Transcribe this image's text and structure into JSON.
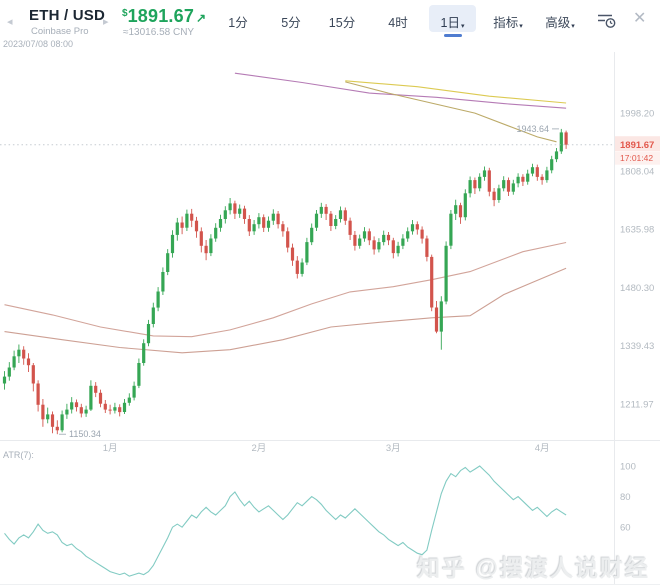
{
  "icons": {
    "prev": "◂",
    "next": "▸",
    "caret": "▾",
    "close": "✕"
  },
  "header": {
    "symbol": "ETH / USD",
    "exchange": "Coinbase Pro",
    "price_currency_symbol": "$",
    "price": "1891.67",
    "trend_arrow": "↗",
    "converted_price": "≈13016.58 CNY",
    "timestamp": "2023/07/08 08:00",
    "timeframe_tabs": [
      {
        "label": "1分",
        "selected": false
      },
      {
        "label": "5分",
        "selected": false
      },
      {
        "label": "15分",
        "selected": false
      },
      {
        "label": "4时",
        "selected": false
      },
      {
        "label": "1日",
        "selected": true
      }
    ],
    "menus": [
      {
        "label": "指标"
      },
      {
        "label": "高级"
      }
    ],
    "accent_colors": {
      "price_up": "#1ea45c",
      "tab_selected_bg": "#e8eef8",
      "tab_underline": "#4f7cd0"
    }
  },
  "chart": {
    "price_axis": [
      "1998.20",
      "1808.04",
      "1635.98",
      "1480.30",
      "1339.43",
      "1211.97"
    ],
    "current_price_label": {
      "price": "1891.67",
      "countdown": "17:01:42",
      "bg": "#fbe7e4",
      "bg2": "#fdf1ef",
      "color": "#e2584c"
    },
    "high_annotation": "1943.64",
    "low_annotation": "1150.34",
    "time_axis": [
      {
        "label": "1月",
        "index": 22
      },
      {
        "label": "2月",
        "index": 53
      },
      {
        "label": "3月",
        "index": 81
      },
      {
        "label": "4月",
        "index": 112
      }
    ],
    "colors": {
      "up": "#35a654",
      "down": "#d2544c",
      "ma_fast_purple": "#b57bb5",
      "ma_mid_yellow": "#dcca52",
      "trendline_olive": "#bcaa68",
      "ma_slow_upper": "#d2a49a",
      "ma_slow_lower": "#cda094",
      "atr": "#82cbc3",
      "dotted_line": "#c5cbd1",
      "axis_text": "#b3bac1",
      "grid": "#e8eaed",
      "annotation_text": "#9aa4af"
    }
  },
  "atr_pane": {
    "label": "ATR(7):",
    "axis": [
      "100",
      "80",
      "60"
    ]
  },
  "watermark": "知乎 @摆渡人说财经",
  "chart_data": [
    {
      "type": "candlestick",
      "title": "ETH/USD 1D candles, Coinbase Pro",
      "price_scale": "log",
      "y_axis_ticks": [
        1998.2,
        1808.04,
        1635.98,
        1480.3,
        1339.43,
        1211.97
      ],
      "x_axis_months": [
        "1月",
        "2月",
        "3月",
        "4月"
      ],
      "period_high": 1943.64,
      "period_low": 1150.34,
      "last_price": 1891.67,
      "ohlc": [
        [
          1255,
          1282,
          1242,
          1270
        ],
        [
          1270,
          1302,
          1261,
          1290
        ],
        [
          1290,
          1328,
          1284,
          1315
        ],
        [
          1315,
          1342,
          1300,
          1330
        ],
        [
          1330,
          1338,
          1296,
          1310
        ],
        [
          1310,
          1322,
          1280,
          1295
        ],
        [
          1295,
          1300,
          1238,
          1255
        ],
        [
          1255,
          1262,
          1196,
          1210
        ],
        [
          1210,
          1222,
          1165,
          1180
        ],
        [
          1180,
          1204,
          1172,
          1190
        ],
        [
          1190,
          1196,
          1152,
          1165
        ],
        [
          1165,
          1178,
          1150.34,
          1158
        ],
        [
          1158,
          1198,
          1154,
          1190
        ],
        [
          1190,
          1212,
          1181,
          1200
        ],
        [
          1200,
          1226,
          1192,
          1215
        ],
        [
          1215,
          1221,
          1196,
          1205
        ],
        [
          1205,
          1212,
          1184,
          1192
        ],
        [
          1192,
          1208,
          1185,
          1200
        ],
        [
          1200,
          1262,
          1197,
          1250
        ],
        [
          1250,
          1258,
          1226,
          1235
        ],
        [
          1235,
          1242,
          1205,
          1212
        ],
        [
          1212,
          1220,
          1193,
          1200
        ],
        [
          1200,
          1210,
          1190,
          1198
        ],
        [
          1198,
          1214,
          1192,
          1205
        ],
        [
          1205,
          1211,
          1186,
          1195
        ],
        [
          1195,
          1222,
          1191,
          1214
        ],
        [
          1214,
          1234,
          1208,
          1225
        ],
        [
          1225,
          1259,
          1219,
          1250
        ],
        [
          1250,
          1310,
          1245,
          1300
        ],
        [
          1300,
          1354,
          1294,
          1345
        ],
        [
          1345,
          1400,
          1338,
          1390
        ],
        [
          1390,
          1442,
          1382,
          1430
        ],
        [
          1430,
          1481,
          1421,
          1470
        ],
        [
          1470,
          1532,
          1461,
          1520
        ],
        [
          1520,
          1581,
          1512,
          1570
        ],
        [
          1570,
          1633,
          1558,
          1620
        ],
        [
          1620,
          1668,
          1604,
          1655
        ],
        [
          1655,
          1672,
          1622,
          1640
        ],
        [
          1640,
          1692,
          1631,
          1680
        ],
        [
          1680,
          1694,
          1642,
          1660
        ],
        [
          1660,
          1671,
          1612,
          1630
        ],
        [
          1630,
          1641,
          1572,
          1590
        ],
        [
          1590,
          1606,
          1551,
          1570
        ],
        [
          1570,
          1622,
          1562,
          1610
        ],
        [
          1610,
          1653,
          1601,
          1640
        ],
        [
          1640,
          1677,
          1629,
          1665
        ],
        [
          1665,
          1702,
          1652,
          1690
        ],
        [
          1690,
          1726,
          1678,
          1710
        ],
        [
          1710,
          1718,
          1665,
          1680
        ],
        [
          1680,
          1707,
          1668,
          1695
        ],
        [
          1695,
          1703,
          1651,
          1665
        ],
        [
          1665,
          1676,
          1617,
          1630
        ],
        [
          1630,
          1662,
          1620,
          1650
        ],
        [
          1650,
          1682,
          1638,
          1670
        ],
        [
          1670,
          1678,
          1628,
          1640
        ],
        [
          1640,
          1672,
          1629,
          1660
        ],
        [
          1660,
          1693,
          1648,
          1680
        ],
        [
          1680,
          1688,
          1638,
          1650
        ],
        [
          1650,
          1659,
          1615,
          1630
        ],
        [
          1630,
          1641,
          1572,
          1585
        ],
        [
          1585,
          1596,
          1536,
          1550
        ],
        [
          1550,
          1562,
          1503,
          1515
        ],
        [
          1515,
          1556,
          1508,
          1545
        ],
        [
          1545,
          1612,
          1538,
          1600
        ],
        [
          1600,
          1652,
          1592,
          1640
        ],
        [
          1640,
          1691,
          1631,
          1680
        ],
        [
          1680,
          1712,
          1668,
          1700
        ],
        [
          1700,
          1708,
          1662,
          1680
        ],
        [
          1680,
          1688,
          1631,
          1645
        ],
        [
          1645,
          1676,
          1636,
          1665
        ],
        [
          1665,
          1701,
          1655,
          1690
        ],
        [
          1690,
          1698,
          1648,
          1660
        ],
        [
          1660,
          1669,
          1606,
          1620
        ],
        [
          1620,
          1631,
          1577,
          1590
        ],
        [
          1590,
          1621,
          1582,
          1610
        ],
        [
          1610,
          1642,
          1601,
          1630
        ],
        [
          1630,
          1638,
          1592,
          1605
        ],
        [
          1605,
          1616,
          1566,
          1580
        ],
        [
          1580,
          1611,
          1572,
          1600
        ],
        [
          1600,
          1632,
          1591,
          1620
        ],
        [
          1620,
          1628,
          1592,
          1605
        ],
        [
          1605,
          1612,
          1556,
          1570
        ],
        [
          1570,
          1601,
          1561,
          1590
        ],
        [
          1590,
          1622,
          1581,
          1610
        ],
        [
          1610,
          1641,
          1601,
          1630
        ],
        [
          1630,
          1662,
          1621,
          1650
        ],
        [
          1650,
          1658,
          1621,
          1635
        ],
        [
          1635,
          1644,
          1596,
          1610
        ],
        [
          1610,
          1618,
          1548,
          1560
        ],
        [
          1560,
          1566,
          1421,
          1430
        ],
        [
          1430,
          1446,
          1368,
          1372
        ],
        [
          1372,
          1458,
          1330,
          1445
        ],
        [
          1445,
          1602,
          1438,
          1590
        ],
        [
          1590,
          1691,
          1581,
          1680
        ],
        [
          1680,
          1721,
          1662,
          1705
        ],
        [
          1705,
          1712,
          1651,
          1670
        ],
        [
          1670,
          1752,
          1661,
          1740
        ],
        [
          1740,
          1791,
          1728,
          1780
        ],
        [
          1780,
          1788,
          1738,
          1755
        ],
        [
          1755,
          1801,
          1746,
          1790
        ],
        [
          1790,
          1822,
          1778,
          1810
        ],
        [
          1810,
          1818,
          1731,
          1745
        ],
        [
          1745,
          1756,
          1702,
          1720
        ],
        [
          1720,
          1766,
          1712,
          1755
        ],
        [
          1755,
          1792,
          1746,
          1780
        ],
        [
          1780,
          1788,
          1732,
          1745
        ],
        [
          1745,
          1781,
          1736,
          1770
        ],
        [
          1770,
          1801,
          1758,
          1790
        ],
        [
          1790,
          1798,
          1762,
          1775
        ],
        [
          1775,
          1812,
          1766,
          1800
        ],
        [
          1800,
          1831,
          1792,
          1820
        ],
        [
          1820,
          1828,
          1778,
          1790
        ],
        [
          1790,
          1798,
          1766,
          1780
        ],
        [
          1780,
          1821,
          1772,
          1810
        ],
        [
          1810,
          1856,
          1801,
          1845
        ],
        [
          1845,
          1881,
          1836,
          1870
        ],
        [
          1870,
          1943.64,
          1862,
          1932
        ],
        [
          1932,
          1938,
          1878,
          1891.67
        ]
      ],
      "overlays": [
        {
          "name": "ma-fast-purple",
          "color_key": "ma_fast_purple",
          "points": [
            [
              48,
              2139
            ],
            [
              62,
              2105
            ],
            [
              76,
              2067
            ],
            [
              90,
              2052
            ],
            [
              104,
              2030
            ],
            [
              117,
              2014
            ]
          ]
        },
        {
          "name": "ma-mid-yellow",
          "color_key": "ma_mid_yellow",
          "points": [
            [
              71,
              2111
            ],
            [
              86,
              2090
            ],
            [
              101,
              2056
            ],
            [
              117,
              2032
            ]
          ]
        },
        {
          "name": "trendline-olive",
          "color_key": "trendline_olive",
          "points": [
            [
              71,
              2107
            ],
            [
              80,
              2067
            ],
            [
              98,
              1997
            ],
            [
              111,
              1917
            ],
            [
              115,
              1901
            ]
          ]
        },
        {
          "name": "ma-slow-upper",
          "color_key": "ma_slow_upper",
          "points": [
            [
              0,
              1437
            ],
            [
              10,
              1412
            ],
            [
              20,
              1383
            ],
            [
              31,
              1362
            ],
            [
              39,
              1360
            ],
            [
              47,
              1376
            ],
            [
              56,
              1405
            ],
            [
              64,
              1439
            ],
            [
              72,
              1469
            ],
            [
              81,
              1482
            ],
            [
              89,
              1500
            ],
            [
              97,
              1521
            ],
            [
              108,
              1574
            ],
            [
              117,
              1599
            ]
          ]
        },
        {
          "name": "ma-slow-lower",
          "color_key": "ma_slow_lower",
          "points": [
            [
              0,
              1372
            ],
            [
              12,
              1353
            ],
            [
              24,
              1335
            ],
            [
              37,
              1323
            ],
            [
              47,
              1330
            ],
            [
              58,
              1353
            ],
            [
              68,
              1383
            ],
            [
              79,
              1395
            ],
            [
              89,
              1405
            ],
            [
              97,
              1410
            ],
            [
              104,
              1462
            ],
            [
              110,
              1493
            ],
            [
              117,
              1530
            ]
          ]
        }
      ]
    },
    {
      "type": "line",
      "title": "ATR(7)",
      "y_axis_ticks": [
        100,
        80,
        60
      ],
      "values": [
        56,
        52,
        49,
        53,
        55,
        53,
        57,
        62,
        58,
        56,
        57,
        55,
        50,
        48,
        49,
        46,
        44,
        41,
        39,
        37,
        35,
        33,
        31,
        30,
        29,
        30,
        28,
        29,
        30,
        29,
        31,
        35,
        41,
        47,
        53,
        60,
        62,
        60,
        64,
        68,
        66,
        70,
        73,
        70,
        68,
        71,
        74,
        80,
        83,
        78,
        74,
        77,
        73,
        70,
        72,
        74,
        71,
        68,
        65,
        68,
        72,
        76,
        74,
        77,
        80,
        78,
        75,
        71,
        68,
        65,
        68,
        66,
        69,
        72,
        69,
        66,
        63,
        60,
        57,
        55,
        52,
        50,
        48,
        50,
        47,
        45,
        43,
        42,
        45,
        58,
        70,
        82,
        90,
        95,
        93,
        97,
        99,
        96,
        98,
        100,
        97,
        94,
        90,
        87,
        84,
        81,
        78,
        80,
        77,
        74,
        71,
        73,
        70,
        67,
        70,
        72,
        70,
        68
      ]
    }
  ]
}
